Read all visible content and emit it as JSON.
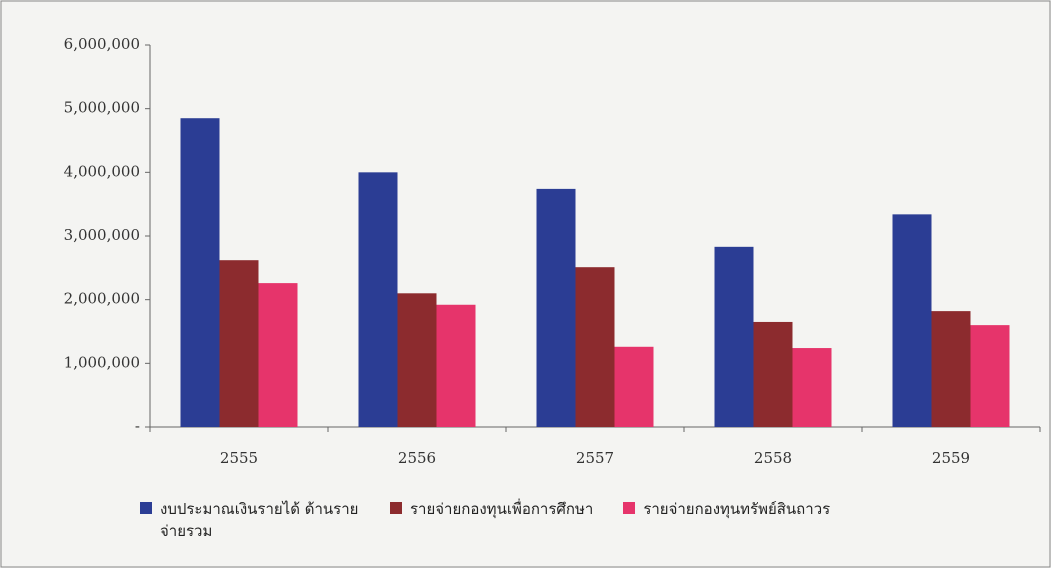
{
  "chart_data": {
    "type": "bar",
    "categories": [
      "2555",
      "2556",
      "2557",
      "2558",
      "2559"
    ],
    "series": [
      {
        "name": "งบประมาณเงินรายได้ ด้านรายจ่ายรวม",
        "color": "#2b3d94",
        "values": [
          4850000,
          4000000,
          3740000,
          2830000,
          3340000
        ]
      },
      {
        "name": "รายจ่ายกองทุนเพื่อการศึกษา",
        "color": "#8c2b2e",
        "values": [
          2620000,
          2100000,
          2510000,
          1650000,
          1820000
        ]
      },
      {
        "name": "รายจ่ายกองทุนทรัพย์สินถาวร",
        "color": "#e6346b",
        "values": [
          2260000,
          1920000,
          1260000,
          1240000,
          1600000
        ]
      }
    ],
    "ylim": [
      0,
      6000000
    ],
    "yticks": [
      {
        "value": 0,
        "label": "-"
      },
      {
        "value": 1000000,
        "label": "1,000,000"
      },
      {
        "value": 2000000,
        "label": "2,000,000"
      },
      {
        "value": 3000000,
        "label": "3,000,000"
      },
      {
        "value": 4000000,
        "label": "4,000,000"
      },
      {
        "value": 5000000,
        "label": "5,000,000"
      },
      {
        "value": 6000000,
        "label": "6,000,000"
      }
    ]
  }
}
